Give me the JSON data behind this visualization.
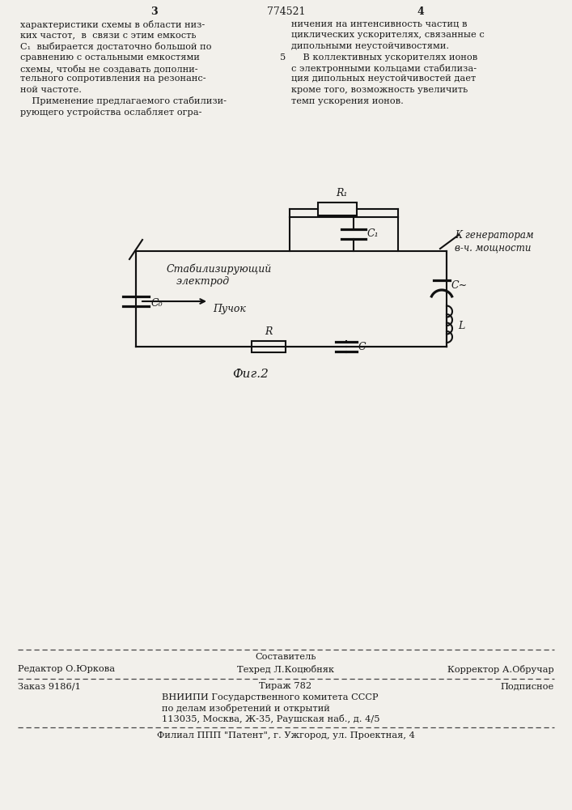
{
  "page_number_left": "3",
  "page_number_right": "4",
  "patent_number": "774521",
  "bg_color": "#f2f0eb",
  "text_color": "#1a1a1a",
  "left_column_text": [
    "характеристики схемы в области низ-",
    "ких частот,  в  связи с этим емкость",
    "C₁  выбирается достаточно большой по",
    "сравнению с остальными емкостями",
    "схемы, чтобы не создавать дополни-",
    "тельного сопротивления на резонанс-",
    "ной частоте.",
    "    Применение предлагаемого стабилизи-",
    "рующего устройства ослабляет огра-"
  ],
  "right_column_text_before5": [
    "ничения на интенсивность частиц в",
    "циклических ускорителях, связанные с",
    "дипольными неустойчивостями."
  ],
  "right_column_text_after5": [
    "    В коллективных ускорителях ионов",
    "с электронными кольцами стабилиза-",
    "ция дипольных неустойчивостей дает",
    "кроме того, возможность увеличить",
    "темп ускорения ионов."
  ],
  "fig_label": "Фиг.2",
  "circuit_labels": {
    "R1": "R₁",
    "C1": "C₁",
    "C0": "C₀",
    "Cm": "C∼",
    "L": "L",
    "R": "R",
    "C": "C",
    "stab": "Стабилизирующий\n   электрод",
    "beam": "Пучок",
    "generator": "К генераторам\nв-ч. мощности"
  },
  "footer": {
    "sostavitel": "Составитель",
    "redaktor": "Редактор О.Юркова",
    "tekhred": "Техред Л.Коцюбняк",
    "korrektor": "Корректор А.Обручар",
    "zakaz": "Заказ 9186/1",
    "tirazh": "Тираж 782",
    "podpisnoe": "Подписное",
    "vniiki_line1": "ВНИИПИ Государственного комитета СССР",
    "vniiki_line2": "по делам изобретений и открытий",
    "vniiki_line3": "113035, Москва, Ж-35, Раушская наб., д. 4/5",
    "filial": "Филиал ППП \"Патент\", г. Ужгород, ул. Проектная, 4"
  }
}
